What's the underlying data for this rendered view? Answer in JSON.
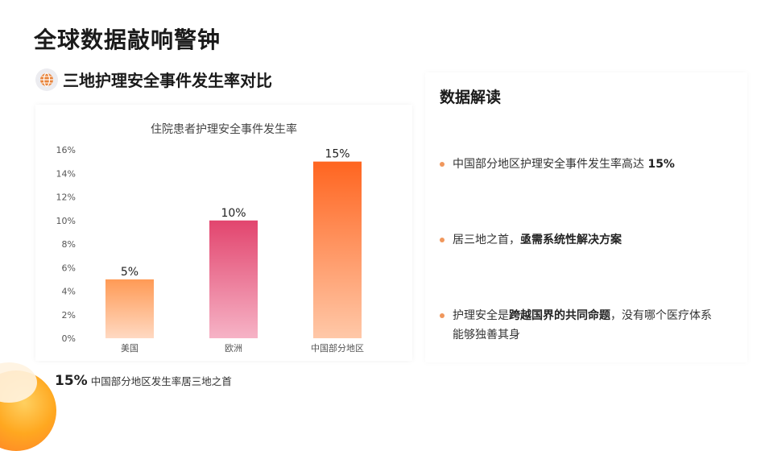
{
  "page": {
    "title": "全球数据敲响警钟",
    "subtitle": "三地护理安全事件发生率对比"
  },
  "summary": {
    "value": "15%",
    "text": "中国部分地区发生率居三地之首"
  },
  "panel": {
    "title": "数据解读",
    "points": [
      {
        "pre": "中国部分地区护理安全事件发生率高达 ",
        "bold": "15%",
        "post": ""
      },
      {
        "pre": "居三地之首，",
        "bold": "亟需系统性解决方案",
        "post": ""
      },
      {
        "pre": "护理安全是",
        "bold": "跨越国界的共同命题",
        "post": "，没有哪个医疗体系能够独善其身"
      }
    ]
  },
  "colors": {
    "accent": "#f0975c",
    "bar1_top": "#ff9a55",
    "bar1_bottom": "#ffd9c2",
    "bar2_top": "#e2456e",
    "bar2_bottom": "#f6b3c6",
    "bar3_top": "#ff6520",
    "bar3_bottom": "#ffc8a8"
  },
  "chart_data": {
    "type": "bar",
    "title": "住院患者护理安全事件发生率",
    "categories": [
      "美国",
      "欧洲",
      "中国部分地区"
    ],
    "values": [
      5,
      10,
      15
    ],
    "data_labels": [
      "5%",
      "10%",
      "15%"
    ],
    "yticks": [
      "0%",
      "2%",
      "4%",
      "6%",
      "8%",
      "10%",
      "12%",
      "14%",
      "16%"
    ],
    "ylim": [
      0,
      16
    ],
    "grid": false,
    "legend": "none"
  }
}
